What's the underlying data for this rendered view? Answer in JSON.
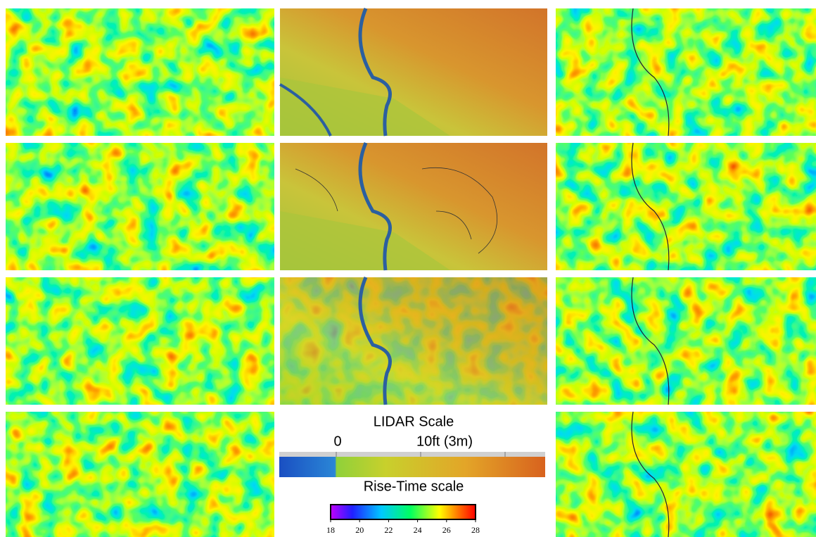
{
  "legend": {
    "lidar_title": "LIDAR Scale",
    "lidar_labels": [
      "0",
      "10ft (3m)"
    ],
    "rise_time_title": "Rise-Time scale",
    "rise_time_range": [
      18,
      28
    ],
    "rise_time_ticks": [
      18,
      20,
      22,
      24,
      26,
      28
    ]
  }
}
